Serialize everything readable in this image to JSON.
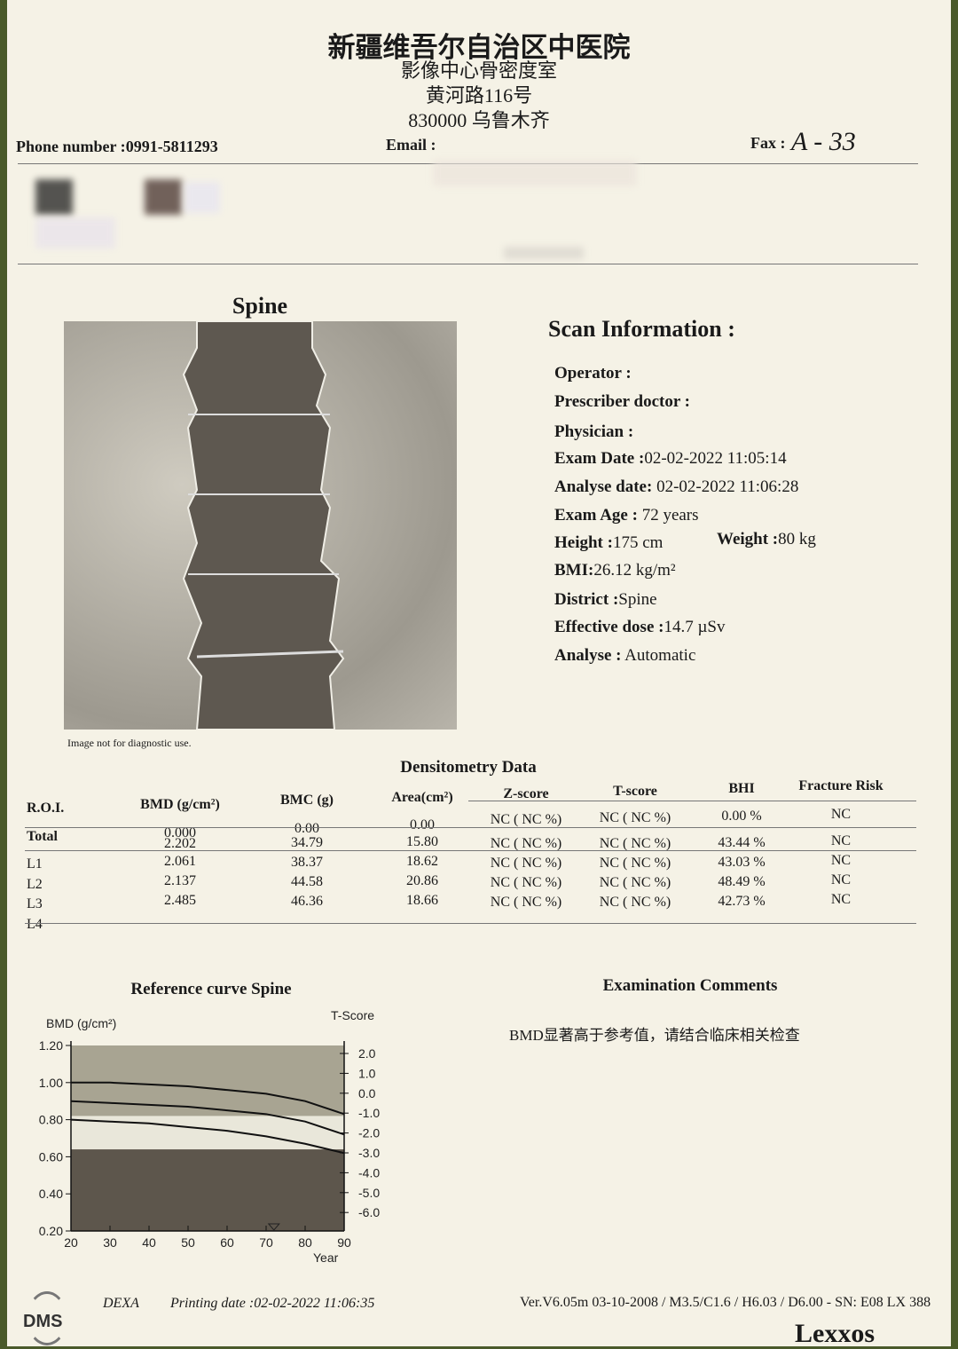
{
  "header": {
    "hospital": "新疆维吾尔自治区中医院",
    "department": "影像中心骨密度室",
    "address": "黄河路116号",
    "city": "830000 乌鲁木齐",
    "phone_label": "Phone number :",
    "phone": "0991-5811293",
    "email_label": "Email :",
    "fax_label": "Fax :",
    "fax_handwritten": "A - 33"
  },
  "image": {
    "title": "Spine",
    "disclaimer": "Image not for diagnostic use."
  },
  "scan_info": {
    "title": "Scan Information :",
    "rows": [
      {
        "label": "Operator :",
        "value": ""
      },
      {
        "label": "Prescriber doctor :",
        "value": ""
      },
      {
        "label": "Physician :",
        "value": ""
      },
      {
        "label": "Exam Date :",
        "value": "02-02-2022 11:05:14"
      },
      {
        "label": "Analyse date:",
        "value": " 02-02-2022 11:06:28"
      },
      {
        "label": "Exam Age :",
        "value": " 72  years"
      },
      {
        "label": "Height :",
        "value": "175 cm"
      },
      {
        "label": "BMI:",
        "value": "26.12 kg/m²"
      },
      {
        "label": "District :",
        "value": "Spine"
      },
      {
        "label": "Effective dose :",
        "value": "14.7 µSv"
      },
      {
        "label": "Analyse :",
        "value": " Automatic"
      }
    ],
    "weight_label": "Weight :",
    "weight_value": "80 kg"
  },
  "densitometry": {
    "title": "Densitometry Data",
    "columns": [
      "R.O.I.",
      "BMD (g/cm²)",
      "BMC (g)",
      "Area(cm²)",
      "Z-score",
      "T-score",
      "BHI",
      "Fracture Risk"
    ],
    "rows": [
      [
        "Total",
        "0.000",
        "0.00",
        "0.00",
        "NC ( NC %)",
        "NC ( NC %)",
        "0.00 %",
        "NC"
      ],
      [
        "L1",
        "2.202",
        "34.79",
        "15.80",
        "NC ( NC %)",
        "NC ( NC %)",
        "43.44 %",
        "NC"
      ],
      [
        "L2",
        "2.061",
        "38.37",
        "18.62",
        "NC ( NC %)",
        "NC ( NC %)",
        "43.03 %",
        "NC"
      ],
      [
        "L3",
        "2.137",
        "44.58",
        "20.86",
        "NC ( NC %)",
        "NC ( NC %)",
        "48.49 %",
        "NC"
      ],
      [
        "L4",
        "2.485",
        "46.36",
        "18.66",
        "NC ( NC %)",
        "NC ( NC %)",
        "42.73 %",
        "NC"
      ]
    ]
  },
  "chart_data": {
    "type": "area",
    "title": "Reference curve Spine",
    "ylabel": "BMD (g/cm²)",
    "y2label": "T-Score",
    "xlabel": "Year",
    "xlim": [
      20,
      90
    ],
    "ylim": [
      0.2,
      1.2
    ],
    "x_ticks": [
      20,
      30,
      40,
      50,
      60,
      70,
      80,
      90
    ],
    "y_ticks": [
      "0.20",
      "0.40",
      "0.60",
      "0.80",
      "1.00",
      "1.20"
    ],
    "y2_ticks": [
      "2.0",
      "1.0",
      "0.0",
      "-1.0",
      "-2.0",
      "-3.0",
      "-4.0",
      "-5.0",
      "-6.0"
    ],
    "bands": [
      {
        "from": 0.2,
        "to": 0.64,
        "color": "#5d564c"
      },
      {
        "from": 0.64,
        "to": 0.82,
        "color": "#e9e7da"
      },
      {
        "from": 0.82,
        "to": 1.2,
        "color": "#a8a492"
      }
    ],
    "series": [
      {
        "x": [
          20,
          30,
          40,
          50,
          60,
          70,
          80,
          90
        ],
        "y": [
          1.0,
          1.0,
          0.99,
          0.98,
          0.96,
          0.94,
          0.9,
          0.83
        ]
      },
      {
        "x": [
          20,
          30,
          40,
          50,
          60,
          70,
          80,
          90
        ],
        "y": [
          0.9,
          0.89,
          0.88,
          0.87,
          0.85,
          0.83,
          0.79,
          0.72
        ]
      },
      {
        "x": [
          20,
          30,
          40,
          50,
          60,
          70,
          80,
          90
        ],
        "y": [
          0.8,
          0.79,
          0.78,
          0.76,
          0.74,
          0.71,
          0.67,
          0.62
        ]
      }
    ],
    "patient_age_marker": 72
  },
  "comments": {
    "title": "Examination Comments",
    "text": "BMD显著高于参考值，请结合临床相关检查"
  },
  "footer": {
    "logo": "DMS",
    "mode": "DEXA",
    "printing_label": "Printing date :",
    "printing_date": "02-02-2022 11:06:35",
    "version": "Ver.V6.05m 03-10-2008 / M3.5/C1.6 / H6.03 / D6.00 - SN: E08 LX 388",
    "brand": "Lexxos"
  }
}
